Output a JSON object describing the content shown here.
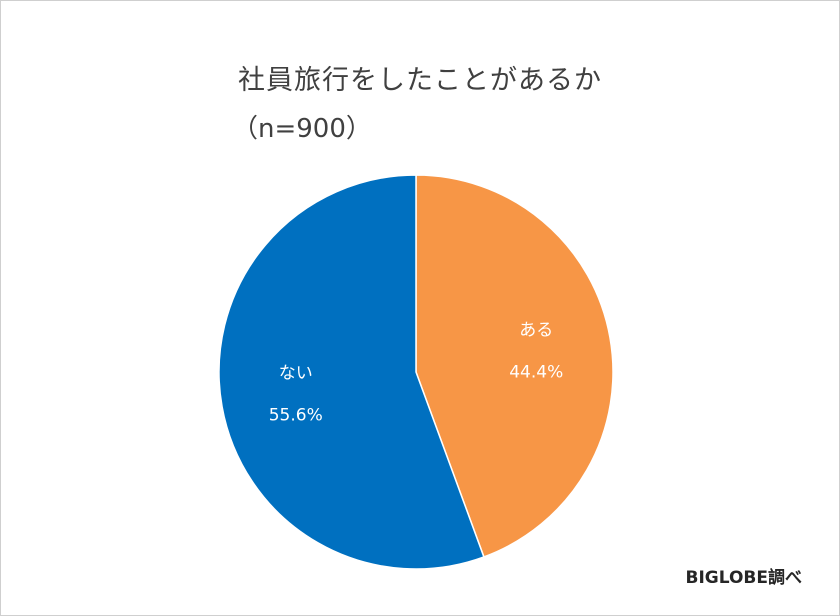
{
  "chart_data": {
    "type": "pie",
    "title": "社員旅行をしたことがあるか",
    "subtitle": "（n=900）",
    "slices": [
      {
        "label": "ある",
        "value": 44.4,
        "value_label": "44.4%",
        "color": "#F79646"
      },
      {
        "label": "ない",
        "value": 55.6,
        "value_label": "55.6%",
        "color": "#0070C0"
      }
    ],
    "start_angle": "12 o'clock",
    "direction": "clockwise",
    "label_color": "#ffffff"
  },
  "source": "BIGLOBE調べ"
}
